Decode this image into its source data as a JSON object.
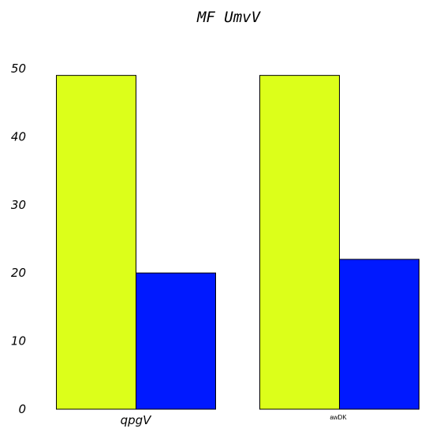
{
  "chart_data": {
    "type": "bar",
    "title": "MF UmvV",
    "xlabel": "",
    "ylabel": "",
    "categories": [
      "qpgV",
      "awDK"
    ],
    "series": [
      {
        "values": [
          49,
          49
        ],
        "color": "#dcff1a"
      },
      {
        "values": [
          20,
          22
        ],
        "color": "#0019ff"
      }
    ],
    "ylim": [
      0,
      50
    ],
    "yticks": [
      "0",
      "10",
      "20",
      "30",
      "40",
      "50"
    ],
    "grid": false,
    "legend": "none"
  }
}
